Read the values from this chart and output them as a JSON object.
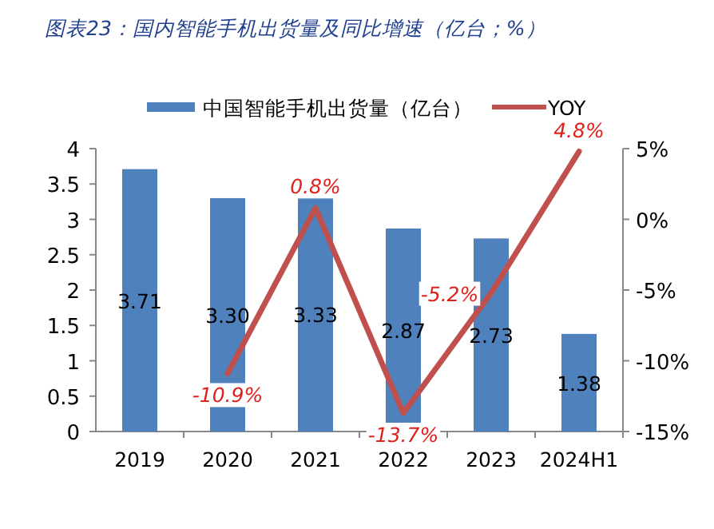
{
  "chart_data": {
    "type": "bar",
    "title": "图表23：国内智能手机出货量及同比增速（亿台；%）",
    "categories": [
      "2019",
      "2020",
      "2021",
      "2022",
      "2023",
      "2024H1"
    ],
    "series": [
      {
        "name": "中国智能手机出货量（亿台）",
        "color": "#4f81bd",
        "values": [
          3.71,
          3.3,
          3.33,
          2.87,
          2.73,
          1.38
        ],
        "value_labels": [
          "3.71",
          "3.30",
          "3.33",
          "2.87",
          "2.73",
          "1.38"
        ]
      },
      {
        "name": "YOY",
        "type": "line",
        "axis": "y2",
        "color": "#c0504d",
        "values": [
          null,
          -10.9,
          0.8,
          -13.7,
          -5.2,
          4.8
        ],
        "value_labels": [
          null,
          "-10.9%",
          "0.8%",
          "-13.7%",
          "-5.2%",
          "4.8%"
        ]
      }
    ],
    "ylim": [
      0,
      4
    ],
    "yticks": [
      0,
      0.5,
      1,
      1.5,
      2,
      2.5,
      3,
      3.5,
      4
    ],
    "y2lim": [
      -15,
      5
    ],
    "y2ticks": [
      {
        "value": -15,
        "label": "-15%"
      },
      {
        "value": -10,
        "label": "-10%"
      },
      {
        "value": -5,
        "label": "-5%"
      },
      {
        "value": 0,
        "label": "0%"
      },
      {
        "value": 5,
        "label": "5%"
      }
    ],
    "legend": "top",
    "grid": false,
    "marker": "none",
    "line_style": "solid"
  }
}
